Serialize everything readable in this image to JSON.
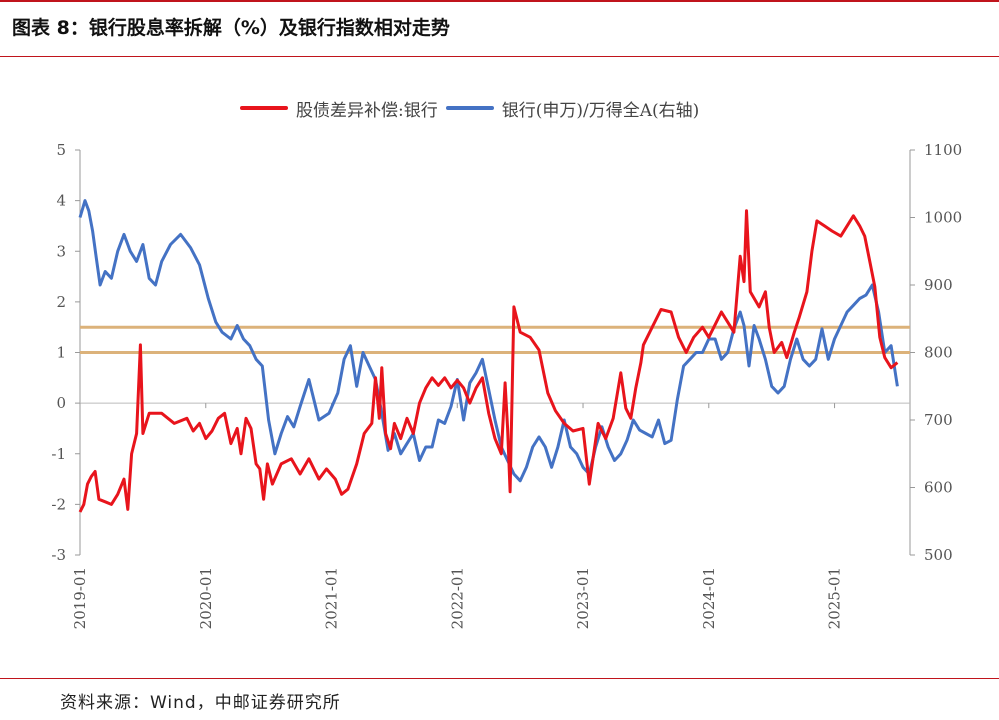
{
  "title": "图表 8：银行股息率拆解（%）及银行指数相对走势",
  "source": "资料来源：Wind，中邮证券研究所",
  "legend": {
    "red_label": "股债差异补偿:银行",
    "blue_label": "银行(申万)/万得全A(右轴)"
  },
  "colors": {
    "red": "#e8141c",
    "blue": "#4472c4",
    "ref": "#dcb27a",
    "border": "#c0141c"
  },
  "chart_data": {
    "type": "line",
    "x_ticks": [
      "2019-01",
      "2020-01",
      "2021-01",
      "2022-01",
      "2023-01",
      "2024-01",
      "2025-01"
    ],
    "x_range": [
      2019.0,
      2025.6
    ],
    "y_left": {
      "ticks": [
        "5",
        "4",
        "3",
        "2",
        "1",
        "0",
        "-1",
        "-2",
        "-3"
      ],
      "range": [
        -3,
        5
      ]
    },
    "y_right": {
      "ticks": [
        "1100",
        "1000",
        "900",
        "800",
        "700",
        "600",
        "500"
      ],
      "range": [
        500,
        1100
      ]
    },
    "reference_lines_left": [
      1.5,
      1.0
    ],
    "series": [
      {
        "name": "股债差异补偿:银行",
        "axis": "left",
        "points": [
          [
            2019.0,
            -2.15
          ],
          [
            2019.03,
            -2.0
          ],
          [
            2019.06,
            -1.6
          ],
          [
            2019.09,
            -1.45
          ],
          [
            2019.12,
            -1.35
          ],
          [
            2019.15,
            -1.9
          ],
          [
            2019.2,
            -1.95
          ],
          [
            2019.25,
            -2.0
          ],
          [
            2019.3,
            -1.8
          ],
          [
            2019.35,
            -1.5
          ],
          [
            2019.38,
            -2.1
          ],
          [
            2019.41,
            -1.0
          ],
          [
            2019.45,
            -0.6
          ],
          [
            2019.48,
            1.15
          ],
          [
            2019.5,
            -0.6
          ],
          [
            2019.55,
            -0.2
          ],
          [
            2019.65,
            -0.2
          ],
          [
            2019.75,
            -0.4
          ],
          [
            2019.85,
            -0.3
          ],
          [
            2019.9,
            -0.55
          ],
          [
            2019.95,
            -0.4
          ],
          [
            2020.0,
            -0.7
          ],
          [
            2020.05,
            -0.55
          ],
          [
            2020.1,
            -0.3
          ],
          [
            2020.15,
            -0.2
          ],
          [
            2020.2,
            -0.8
          ],
          [
            2020.25,
            -0.5
          ],
          [
            2020.28,
            -1.0
          ],
          [
            2020.32,
            -0.3
          ],
          [
            2020.36,
            -0.5
          ],
          [
            2020.4,
            -1.2
          ],
          [
            2020.43,
            -1.3
          ],
          [
            2020.46,
            -1.9
          ],
          [
            2020.49,
            -1.2
          ],
          [
            2020.53,
            -1.6
          ],
          [
            2020.6,
            -1.2
          ],
          [
            2020.68,
            -1.1
          ],
          [
            2020.75,
            -1.4
          ],
          [
            2020.82,
            -1.1
          ],
          [
            2020.9,
            -1.5
          ],
          [
            2020.96,
            -1.3
          ],
          [
            2021.03,
            -1.5
          ],
          [
            2021.08,
            -1.8
          ],
          [
            2021.13,
            -1.7
          ],
          [
            2021.2,
            -1.2
          ],
          [
            2021.26,
            -0.6
          ],
          [
            2021.32,
            -0.4
          ],
          [
            2021.35,
            0.5
          ],
          [
            2021.38,
            -0.3
          ],
          [
            2021.4,
            0.7
          ],
          [
            2021.43,
            -0.6
          ],
          [
            2021.47,
            -0.9
          ],
          [
            2021.5,
            -0.4
          ],
          [
            2021.55,
            -0.7
          ],
          [
            2021.6,
            -0.3
          ],
          [
            2021.65,
            -0.6
          ],
          [
            2021.7,
            0.0
          ],
          [
            2021.75,
            0.3
          ],
          [
            2021.8,
            0.5
          ],
          [
            2021.85,
            0.35
          ],
          [
            2021.9,
            0.5
          ],
          [
            2021.95,
            0.3
          ],
          [
            2022.0,
            0.45
          ],
          [
            2022.05,
            0.3
          ],
          [
            2022.1,
            0.0
          ],
          [
            2022.15,
            0.3
          ],
          [
            2022.2,
            0.5
          ],
          [
            2022.25,
            -0.2
          ],
          [
            2022.3,
            -0.7
          ],
          [
            2022.35,
            -1.0
          ],
          [
            2022.38,
            0.4
          ],
          [
            2022.4,
            -0.5
          ],
          [
            2022.42,
            -1.75
          ],
          [
            2022.45,
            1.9
          ],
          [
            2022.5,
            1.4
          ],
          [
            2022.58,
            1.3
          ],
          [
            2022.65,
            1.05
          ],
          [
            2022.72,
            0.2
          ],
          [
            2022.78,
            -0.15
          ],
          [
            2022.85,
            -0.4
          ],
          [
            2022.92,
            -0.55
          ],
          [
            2023.0,
            -0.5
          ],
          [
            2023.05,
            -1.6
          ],
          [
            2023.12,
            -0.4
          ],
          [
            2023.18,
            -0.7
          ],
          [
            2023.24,
            -0.3
          ],
          [
            2023.3,
            0.6
          ],
          [
            2023.34,
            -0.1
          ],
          [
            2023.38,
            -0.3
          ],
          [
            2023.42,
            0.3
          ],
          [
            2023.46,
            0.8
          ],
          [
            2023.48,
            1.15
          ],
          [
            2023.55,
            1.5
          ],
          [
            2023.62,
            1.85
          ],
          [
            2023.7,
            1.8
          ],
          [
            2023.76,
            1.3
          ],
          [
            2023.82,
            1.0
          ],
          [
            2023.88,
            1.3
          ],
          [
            2023.95,
            1.5
          ],
          [
            2024.0,
            1.3
          ],
          [
            2024.05,
            1.55
          ],
          [
            2024.1,
            1.8
          ],
          [
            2024.15,
            1.6
          ],
          [
            2024.2,
            1.4
          ],
          [
            2024.25,
            2.9
          ],
          [
            2024.28,
            2.4
          ],
          [
            2024.3,
            3.8
          ],
          [
            2024.33,
            2.2
          ],
          [
            2024.4,
            1.9
          ],
          [
            2024.45,
            2.2
          ],
          [
            2024.48,
            1.5
          ],
          [
            2024.52,
            1.0
          ],
          [
            2024.58,
            1.2
          ],
          [
            2024.62,
            0.9
          ],
          [
            2024.68,
            1.4
          ],
          [
            2024.72,
            1.7
          ],
          [
            2024.78,
            2.2
          ],
          [
            2024.82,
            3.0
          ],
          [
            2024.86,
            3.6
          ],
          [
            2024.92,
            3.5
          ],
          [
            2024.98,
            3.4
          ],
          [
            2025.05,
            3.3
          ],
          [
            2025.1,
            3.5
          ],
          [
            2025.15,
            3.7
          ],
          [
            2025.2,
            3.5
          ],
          [
            2025.24,
            3.3
          ],
          [
            2025.28,
            2.8
          ],
          [
            2025.32,
            2.3
          ],
          [
            2025.36,
            1.3
          ],
          [
            2025.4,
            0.9
          ],
          [
            2025.45,
            0.7
          ],
          [
            2025.5,
            0.8
          ]
        ]
      },
      {
        "name": "银行(申万)/万得全A(右轴)",
        "axis": "right",
        "points": [
          [
            2019.0,
            1000
          ],
          [
            2019.04,
            1025
          ],
          [
            2019.07,
            1010
          ],
          [
            2019.1,
            980
          ],
          [
            2019.13,
            940
          ],
          [
            2019.16,
            900
          ],
          [
            2019.2,
            920
          ],
          [
            2019.25,
            910
          ],
          [
            2019.3,
            950
          ],
          [
            2019.35,
            975
          ],
          [
            2019.4,
            950
          ],
          [
            2019.45,
            935
          ],
          [
            2019.5,
            960
          ],
          [
            2019.55,
            910
          ],
          [
            2019.6,
            900
          ],
          [
            2019.65,
            935
          ],
          [
            2019.72,
            960
          ],
          [
            2019.8,
            975
          ],
          [
            2019.88,
            955
          ],
          [
            2019.95,
            930
          ],
          [
            2020.02,
            880
          ],
          [
            2020.08,
            845
          ],
          [
            2020.13,
            830
          ],
          [
            2020.2,
            820
          ],
          [
            2020.25,
            840
          ],
          [
            2020.3,
            820
          ],
          [
            2020.35,
            810
          ],
          [
            2020.4,
            790
          ],
          [
            2020.45,
            780
          ],
          [
            2020.5,
            700
          ],
          [
            2020.55,
            650
          ],
          [
            2020.6,
            680
          ],
          [
            2020.65,
            705
          ],
          [
            2020.7,
            690
          ],
          [
            2020.75,
            720
          ],
          [
            2020.82,
            760
          ],
          [
            2020.9,
            700
          ],
          [
            2020.98,
            710
          ],
          [
            2021.05,
            740
          ],
          [
            2021.1,
            790
          ],
          [
            2021.15,
            810
          ],
          [
            2021.2,
            750
          ],
          [
            2021.25,
            800
          ],
          [
            2021.3,
            780
          ],
          [
            2021.35,
            760
          ],
          [
            2021.4,
            710
          ],
          [
            2021.45,
            655
          ],
          [
            2021.5,
            680
          ],
          [
            2021.55,
            650
          ],
          [
            2021.6,
            665
          ],
          [
            2021.65,
            680
          ],
          [
            2021.7,
            640
          ],
          [
            2021.75,
            660
          ],
          [
            2021.8,
            660
          ],
          [
            2021.85,
            700
          ],
          [
            2021.9,
            695
          ],
          [
            2021.95,
            720
          ],
          [
            2022.0,
            760
          ],
          [
            2022.05,
            700
          ],
          [
            2022.1,
            755
          ],
          [
            2022.15,
            770
          ],
          [
            2022.2,
            790
          ],
          [
            2022.25,
            745
          ],
          [
            2022.3,
            700
          ],
          [
            2022.35,
            660
          ],
          [
            2022.4,
            640
          ],
          [
            2022.45,
            620
          ],
          [
            2022.5,
            610
          ],
          [
            2022.55,
            630
          ],
          [
            2022.6,
            660
          ],
          [
            2022.65,
            675
          ],
          [
            2022.7,
            660
          ],
          [
            2022.75,
            630
          ],
          [
            2022.8,
            660
          ],
          [
            2022.85,
            700
          ],
          [
            2022.9,
            660
          ],
          [
            2022.95,
            650
          ],
          [
            2023.0,
            630
          ],
          [
            2023.05,
            620
          ],
          [
            2023.1,
            660
          ],
          [
            2023.15,
            690
          ],
          [
            2023.2,
            660
          ],
          [
            2023.25,
            640
          ],
          [
            2023.3,
            650
          ],
          [
            2023.35,
            670
          ],
          [
            2023.4,
            700
          ],
          [
            2023.45,
            685
          ],
          [
            2023.5,
            680
          ],
          [
            2023.55,
            675
          ],
          [
            2023.6,
            700
          ],
          [
            2023.65,
            665
          ],
          [
            2023.7,
            670
          ],
          [
            2023.75,
            730
          ],
          [
            2023.8,
            780
          ],
          [
            2023.85,
            790
          ],
          [
            2023.9,
            800
          ],
          [
            2023.95,
            800
          ],
          [
            2024.0,
            820
          ],
          [
            2024.05,
            820
          ],
          [
            2024.1,
            790
          ],
          [
            2024.15,
            800
          ],
          [
            2024.2,
            835
          ],
          [
            2024.25,
            860
          ],
          [
            2024.28,
            840
          ],
          [
            2024.32,
            780
          ],
          [
            2024.36,
            840
          ],
          [
            2024.4,
            820
          ],
          [
            2024.45,
            790
          ],
          [
            2024.5,
            750
          ],
          [
            2024.55,
            740
          ],
          [
            2024.6,
            750
          ],
          [
            2024.65,
            790
          ],
          [
            2024.7,
            820
          ],
          [
            2024.75,
            790
          ],
          [
            2024.8,
            780
          ],
          [
            2024.85,
            790
          ],
          [
            2024.9,
            835
          ],
          [
            2024.95,
            790
          ],
          [
            2025.0,
            820
          ],
          [
            2025.05,
            840
          ],
          [
            2025.1,
            860
          ],
          [
            2025.15,
            870
          ],
          [
            2025.2,
            880
          ],
          [
            2025.25,
            885
          ],
          [
            2025.3,
            900
          ],
          [
            2025.35,
            860
          ],
          [
            2025.4,
            800
          ],
          [
            2025.45,
            810
          ],
          [
            2025.5,
            750
          ]
        ]
      }
    ]
  }
}
